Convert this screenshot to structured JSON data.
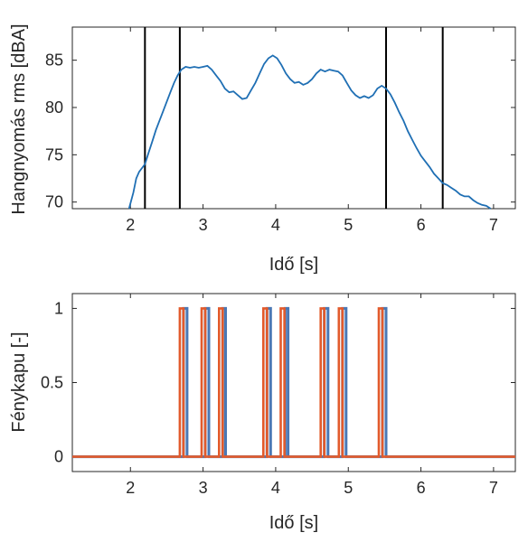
{
  "chart_data": [
    {
      "type": "line",
      "xlabel": "Idő [s]",
      "ylabel": "Hangnyomás rms [dBA]",
      "xlim": [
        1.2,
        7.3
      ],
      "ylim": [
        69.3,
        88.5
      ],
      "xticks": [
        2,
        3,
        4,
        5,
        6,
        7
      ],
      "yticks": [
        70,
        75,
        80,
        85
      ],
      "tick_labels_x": [
        "2",
        "3",
        "4",
        "5",
        "6",
        "7"
      ],
      "tick_labels_y": [
        "70",
        "75",
        "80",
        "85"
      ],
      "grid": false,
      "colors": {
        "line": "#1f6fb4",
        "markers": "#000000"
      },
      "vertical_lines": [
        2.2,
        2.68,
        5.52,
        6.3
      ],
      "series": [
        {
          "x": [
            1.98,
            2.04,
            2.08,
            2.12,
            2.16,
            2.2,
            2.25,
            2.3,
            2.35,
            2.4,
            2.45,
            2.5,
            2.55,
            2.6,
            2.65,
            2.7,
            2.76,
            2.82,
            2.88,
            2.94,
            3.0,
            3.06,
            3.12,
            3.18,
            3.24,
            3.3,
            3.36,
            3.42,
            3.48,
            3.54,
            3.6,
            3.66,
            3.72,
            3.78,
            3.84,
            3.9,
            3.96,
            4.02,
            4.08,
            4.14,
            4.2,
            4.26,
            4.32,
            4.38,
            4.44,
            4.5,
            4.56,
            4.62,
            4.68,
            4.74,
            4.8,
            4.86,
            4.92,
            4.98,
            5.04,
            5.1,
            5.16,
            5.22,
            5.28,
            5.34,
            5.4,
            5.46,
            5.52,
            5.58,
            5.64,
            5.7,
            5.76,
            5.82,
            5.88,
            5.94,
            6.0,
            6.06,
            6.12,
            6.18,
            6.24,
            6.3,
            6.36,
            6.42,
            6.48,
            6.54,
            6.6,
            6.66,
            6.72,
            6.78,
            6.84,
            6.9,
            6.96
          ],
          "y": [
            69.3,
            71.0,
            72.5,
            73.2,
            73.6,
            74.0,
            75.2,
            76.4,
            77.6,
            78.6,
            79.6,
            80.6,
            81.6,
            82.6,
            83.4,
            84.0,
            84.3,
            84.2,
            84.3,
            84.2,
            84.3,
            84.4,
            84.0,
            83.4,
            82.8,
            82.0,
            81.6,
            81.7,
            81.3,
            80.9,
            81.0,
            81.8,
            82.6,
            83.6,
            84.6,
            85.2,
            85.5,
            85.2,
            84.5,
            83.6,
            83.0,
            82.6,
            82.7,
            82.4,
            82.6,
            83.0,
            83.6,
            84.0,
            83.8,
            84.0,
            83.9,
            83.8,
            83.4,
            82.6,
            81.8,
            81.3,
            81.0,
            81.2,
            81.0,
            81.3,
            82.0,
            82.3,
            82.0,
            81.4,
            80.5,
            79.5,
            78.6,
            77.5,
            76.6,
            75.7,
            74.9,
            74.3,
            73.7,
            73.0,
            72.5,
            72.0,
            71.8,
            71.5,
            71.2,
            70.8,
            70.6,
            70.6,
            70.2,
            69.9,
            69.7,
            69.6,
            69.3
          ]
        }
      ]
    },
    {
      "type": "line",
      "xlabel": "Idő [s]",
      "ylabel": "Fénykapu [-]",
      "xlim": [
        1.2,
        7.3
      ],
      "ylim": [
        -0.1,
        1.1
      ],
      "xticks": [
        2,
        3,
        4,
        5,
        6,
        7
      ],
      "yticks": [
        0,
        0.5,
        1
      ],
      "tick_labels_x": [
        "2",
        "3",
        "4",
        "5",
        "6",
        "7"
      ],
      "tick_labels_y": [
        "0",
        "0.5",
        "1"
      ],
      "grid": false,
      "colors": {
        "series1": "#4a78b5",
        "series2": "#e25a2b"
      },
      "series": [
        {
          "pulses": [
            [
              2.73,
              2.78
            ],
            [
              3.03,
              3.08
            ],
            [
              3.27,
              3.31
            ],
            [
              3.88,
              3.93
            ],
            [
              4.13,
              4.17
            ],
            [
              4.67,
              4.72
            ],
            [
              4.92,
              4.97
            ],
            [
              5.47,
              5.52
            ]
          ]
        },
        {
          "pulses": [
            [
              2.68,
              2.73
            ],
            [
              2.98,
              3.03
            ],
            [
              3.22,
              3.27
            ],
            [
              3.83,
              3.88
            ],
            [
              4.07,
              4.12
            ],
            [
              4.62,
              4.67
            ],
            [
              4.87,
              4.92
            ],
            [
              5.42,
              5.47
            ]
          ]
        }
      ]
    }
  ]
}
